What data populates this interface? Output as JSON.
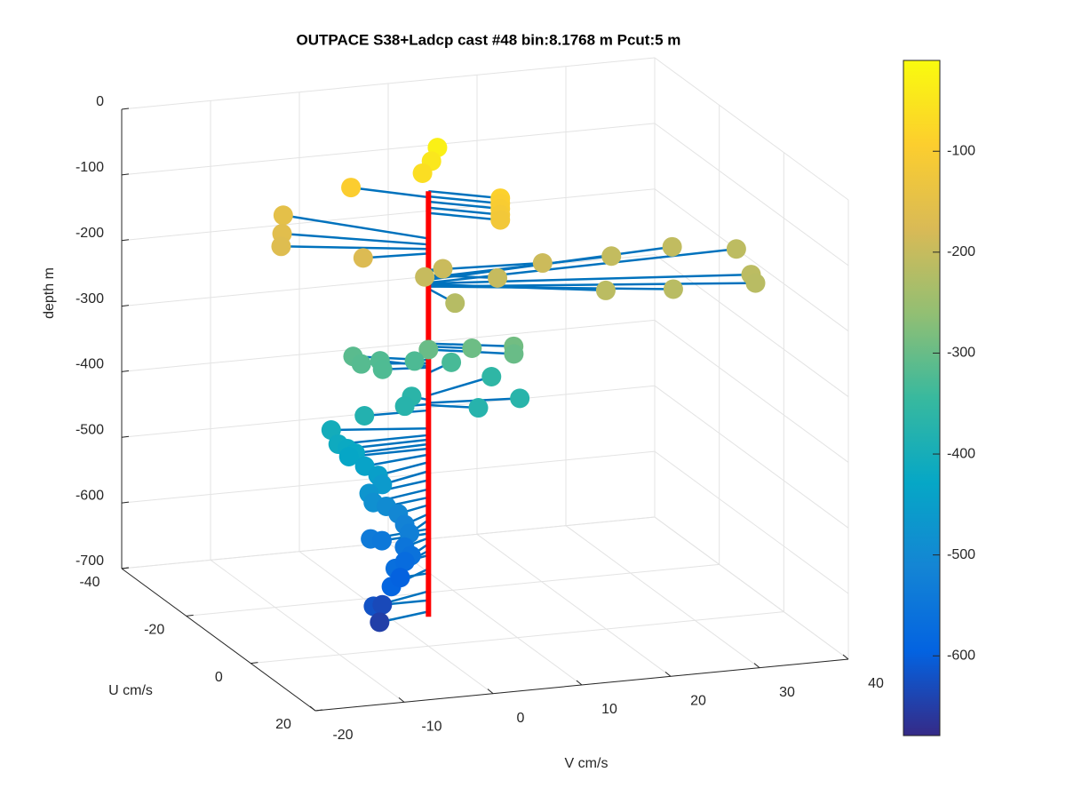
{
  "chart_data": {
    "type": "scatter3",
    "title": "OUTPACE S38+Ladcp cast #48 bin:8.1768 m  Pcut:5 m",
    "zlabel": "depth m",
    "xlabel": "U cm/s",
    "ylabel": "V cm/s",
    "xlim": [
      -40,
      20
    ],
    "xticks": [
      -40,
      -20,
      0,
      20
    ],
    "ylim": [
      -20,
      40
    ],
    "yticks": [
      -20,
      -10,
      0,
      10,
      20,
      30,
      40
    ],
    "zlim": [
      -700,
      0
    ],
    "zticks": [
      0,
      -100,
      -200,
      -300,
      -400,
      -500,
      -600,
      -700
    ],
    "grid": true,
    "stem_color": "#0072bd",
    "profile": {
      "color": "#ff0000",
      "depth": [
        -88,
        -655
      ]
    },
    "depth": [
      -30,
      -48,
      -64,
      -96,
      -88,
      -95,
      -102,
      -110,
      -117,
      -151,
      -159,
      -165,
      -171,
      -200,
      -193,
      -203,
      -206,
      -210,
      -211,
      -215,
      -215,
      -212,
      -195,
      -200,
      -218,
      -291,
      -295,
      -299,
      -299,
      -313,
      -317,
      -321,
      -323,
      -325,
      -330,
      -360,
      -370,
      -373,
      -366,
      -372,
      -380,
      -404,
      -413,
      -419,
      -425,
      -431,
      -439,
      -449,
      -461,
      -473,
      -485,
      -496,
      -506,
      -518,
      -526,
      -538,
      -544,
      -550,
      -558,
      -567,
      -573,
      -591,
      -597,
      -621,
      -633,
      -648
    ],
    "u": [
      0.3,
      0.1,
      -0.2,
      -6.4,
      5.2,
      5.2,
      5.2,
      5.2,
      5.2,
      -13.9,
      -9.3,
      -6.3,
      -0.7,
      3.5,
      1.5,
      -1.4,
      -3.5,
      -1.5,
      8.3,
      10.5,
      9.8,
      8.7,
      -0.5,
      0.5,
      6.3,
      4.1,
      2.2,
      4.7,
      0,
      -4.1,
      -2.1,
      -3.7,
      -1,
      -3.5,
      -3.1,
      -4.7,
      1.6,
      2.8,
      -1.9,
      -0.2,
      -0.3,
      -2.9,
      0.1,
      0.4,
      0.7,
      0.1,
      2,
      3.1,
      3.3,
      2.8,
      3,
      1.8,
      2.2,
      3.1,
      4.3,
      1.6,
      1,
      2.5,
      3.7,
      5.4,
      1.5,
      5.3,
      0.6,
      3.6,
      0,
      2.2
    ],
    "v": [
      0.9,
      0.3,
      -0.6,
      -6.4,
      6.2,
      6.2,
      6.2,
      6.2,
      6.2,
      -11.3,
      -13.1,
      -14.3,
      -7.1,
      6.5,
      12.3,
      21.1,
      28.7,
      35.2,
      33.3,
      33,
      24,
      16.8,
      1.8,
      -0.6,
      0.7,
      8.1,
      4.1,
      7.9,
      0,
      -7,
      -6.8,
      -4.1,
      -4.8,
      -0.3,
      3.7,
      8.8,
      9.7,
      4.6,
      -1.2,
      -2.6,
      -7.1,
      -9.9,
      -10.2,
      -9.3,
      -8.5,
      -9,
      -7.9,
      -6.8,
      -6.4,
      -7.7,
      -7.3,
      -5.4,
      -4.2,
      -3.8,
      -3.7,
      -7.1,
      -5.6,
      -3.6,
      -3.3,
      -5.7,
      -3.2,
      -6.1,
      -3.4,
      -7.5,
      -5.2,
      -6.3
    ],
    "colorbar": {
      "clim": [
        -679,
        -10
      ],
      "ticks": [
        -100,
        -200,
        -300,
        -400,
        -500,
        -600
      ],
      "colormap": [
        "#352a87",
        "#0363e1",
        "#1485d4",
        "#06a7c6",
        "#38b99e",
        "#92bf73",
        "#d9ba56",
        "#fcce2e",
        "#f9fb0e"
      ]
    }
  }
}
